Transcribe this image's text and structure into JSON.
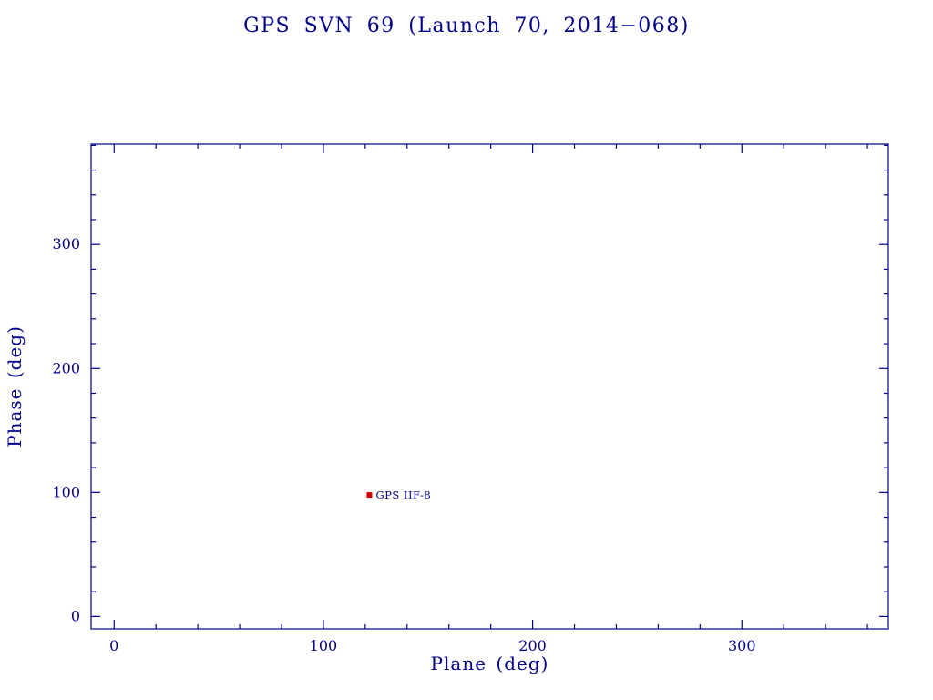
{
  "chart_data": {
    "type": "scatter",
    "title": "GPS SVN 69 (Launch 70, 2014−068)",
    "xlabel": "Plane (deg)",
    "ylabel": "Phase (deg)",
    "xlim": [
      -11,
      370
    ],
    "ylim": [
      -10,
      381
    ],
    "x_ticks": [
      0,
      100,
      200,
      300
    ],
    "y_ticks": [
      0,
      100,
      200,
      300
    ],
    "minor_tick_step": 20,
    "grid": false,
    "legend": "none",
    "series": [
      {
        "name": "GPS IIF-8",
        "label": "GPS IIF-8",
        "marker": "filled-square",
        "color": "#d40000",
        "points": [
          {
            "x": 122,
            "y": 98
          }
        ]
      }
    ],
    "colors": {
      "axis": "#00008b",
      "text": "#00008b",
      "background": "#ffffff"
    }
  }
}
